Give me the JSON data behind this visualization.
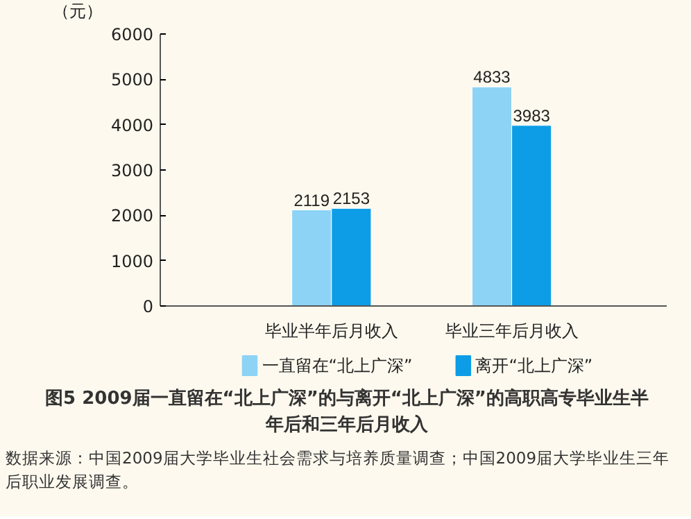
{
  "chart_data": {
    "type": "bar",
    "title": "图5 2009届一直留在“北上广深”的与离开“北上广深”的高职高专毕业生半年后和三年后月收入",
    "ylabel": "（元）",
    "categories": [
      "毕业半年后月收入",
      "毕业三年后月收入"
    ],
    "series": [
      {
        "name": "一直留在“北上广深”",
        "color": "#8dd3f5",
        "values": [
          2119,
          4833
        ]
      },
      {
        "name": "离开“北上广深”",
        "color": "#0d9de6",
        "values": [
          2153,
          3983
        ]
      }
    ],
    "ylim": [
      0,
      6000
    ],
    "yticks": [
      0,
      1000,
      2000,
      3000,
      4000,
      5000,
      6000
    ],
    "grid": false,
    "legend": "bottom",
    "data_labels": true,
    "annotations": [
      "数据来源：中国2009届大学毕业生社会需求与培养质量调查；中国2009届大学毕业生三年后职业发展调查。"
    ]
  }
}
